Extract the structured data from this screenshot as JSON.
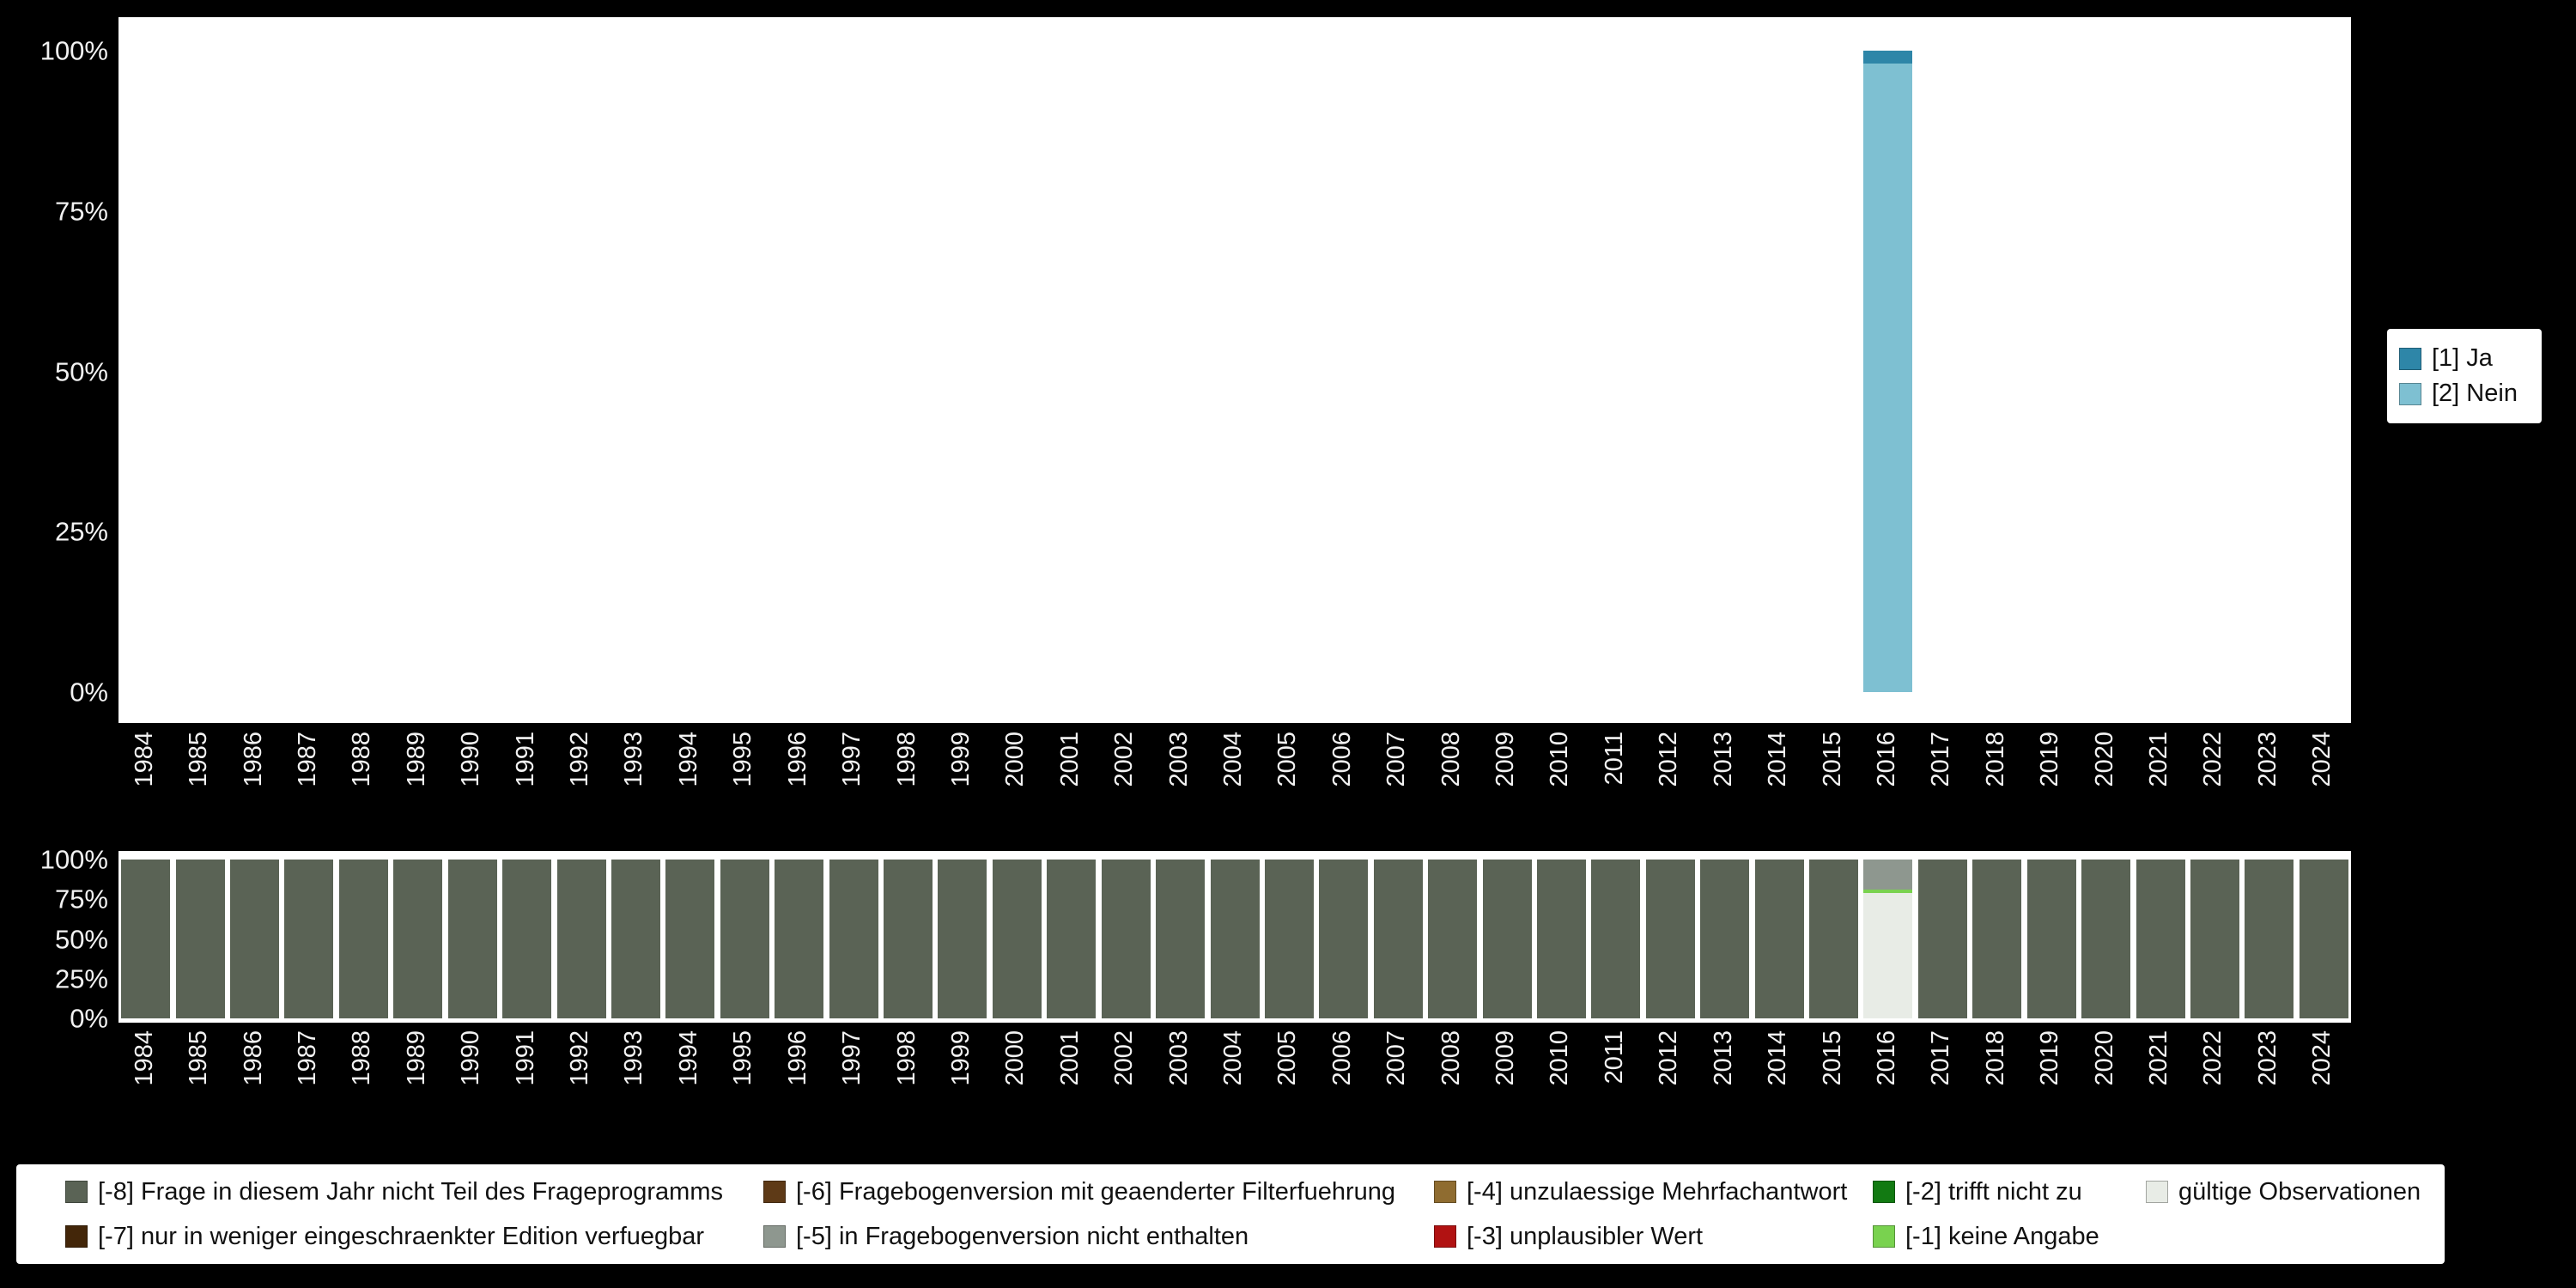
{
  "page": {
    "background": "#000000",
    "plot_background": "#ffffff"
  },
  "chart_data": [
    {
      "id": "variable-distribution-by-year",
      "type": "bar",
      "stacked": true,
      "title": "",
      "xlabel": "",
      "ylabel": "",
      "ylim": [
        0,
        100
      ],
      "grid": false,
      "legend_position": "right",
      "categories": [
        "1984",
        "1985",
        "1986",
        "1987",
        "1988",
        "1989",
        "1990",
        "1991",
        "1992",
        "1993",
        "1994",
        "1995",
        "1996",
        "1997",
        "1998",
        "1999",
        "2000",
        "2001",
        "2002",
        "2003",
        "2004",
        "2005",
        "2006",
        "2007",
        "2008",
        "2009",
        "2010",
        "2011",
        "2012",
        "2013",
        "2014",
        "2015",
        "2016",
        "2017",
        "2018",
        "2019",
        "2020",
        "2021",
        "2022",
        "2023",
        "2024"
      ],
      "y_ticks": [
        {
          "label": "0%",
          "value": 0
        },
        {
          "label": "25%",
          "value": 25
        },
        {
          "label": "50%",
          "value": 50
        },
        {
          "label": "75%",
          "value": 75
        },
        {
          "label": "100%",
          "value": 100
        }
      ],
      "series": [
        {
          "name": "[1] Ja",
          "color": "#2e86a8",
          "default": 0,
          "values": {
            "2016": 2
          }
        },
        {
          "name": "[2] Nein",
          "color": "#7ec0d2",
          "default": 0,
          "values": {
            "2016": 98
          }
        }
      ]
    },
    {
      "id": "missing-codes-by-year",
      "type": "bar",
      "stacked": true,
      "title": "",
      "xlabel": "",
      "ylabel": "",
      "ylim": [
        0,
        100
      ],
      "grid": false,
      "legend_position": "bottom",
      "categories": [
        "1984",
        "1985",
        "1986",
        "1987",
        "1988",
        "1989",
        "1990",
        "1991",
        "1992",
        "1993",
        "1994",
        "1995",
        "1996",
        "1997",
        "1998",
        "1999",
        "2000",
        "2001",
        "2002",
        "2003",
        "2004",
        "2005",
        "2006",
        "2007",
        "2008",
        "2009",
        "2010",
        "2011",
        "2012",
        "2013",
        "2014",
        "2015",
        "2016",
        "2017",
        "2018",
        "2019",
        "2020",
        "2021",
        "2022",
        "2023",
        "2024"
      ],
      "y_ticks": [
        {
          "label": "0%",
          "value": 0
        },
        {
          "label": "25%",
          "value": 25
        },
        {
          "label": "50%",
          "value": 50
        },
        {
          "label": "75%",
          "value": 75
        },
        {
          "label": "100%",
          "value": 100
        }
      ],
      "series": [
        {
          "name": "[-8] Frage in diesem Jahr nicht Teil des Frageprogramms",
          "color": "#5a6355",
          "default": 100,
          "values": {
            "2016": 0
          }
        },
        {
          "name": "[-5] in Fragebogenversion nicht enthalten",
          "color": "#8e978f",
          "default": 0,
          "values": {
            "2016": 19
          }
        },
        {
          "name": "[-1] keine Angabe",
          "color": "#79d24f",
          "default": 0,
          "values": {
            "2016": 2
          }
        },
        {
          "name": "gültige Observationen",
          "color": "#e8ece6",
          "default": 0,
          "values": {
            "2016": 79
          }
        }
      ],
      "legend": {
        "items": [
          {
            "label": "[-8] Frage in diesem Jahr nicht Teil des Frageprogramms",
            "color": "#5a6355"
          },
          {
            "label": "[-7] nur in weniger eingeschraenkter Edition verfuegbar",
            "color": "#432609"
          },
          {
            "label": "[-6] Fragebogenversion mit geaenderter Filterfuehrung",
            "color": "#5e3a17"
          },
          {
            "label": "[-5] in Fragebogenversion nicht enthalten",
            "color": "#8e978f"
          },
          {
            "label": "[-4] unzulaessige Mehrfachantwort",
            "color": "#8f6c30"
          },
          {
            "label": "[-3] unplausibler Wert",
            "color": "#b11212"
          },
          {
            "label": "[-2] trifft nicht zu",
            "color": "#127a12"
          },
          {
            "label": "[-1] keine Angabe",
            "color": "#79d24f"
          },
          {
            "label": "gültige Observationen",
            "color": "#e8ece6"
          }
        ]
      }
    }
  ]
}
